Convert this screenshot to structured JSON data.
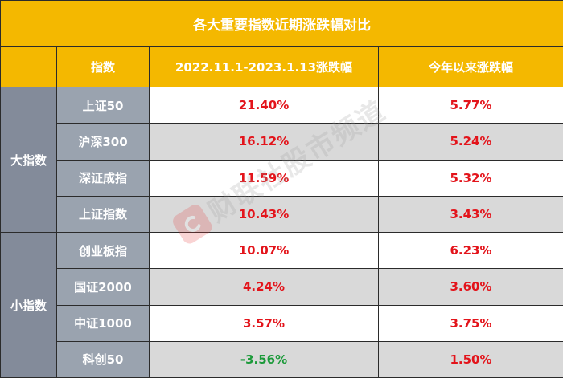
{
  "title": "各大重要指数近期涨跌幅对比",
  "headers": {
    "index": "指数",
    "period": "2022.11.1-2023.1.13涨跌幅",
    "ytd": "今年以来涨跌幅"
  },
  "groups": [
    {
      "label": "大指数",
      "rows": [
        {
          "name": "上证50",
          "period": "21.40%",
          "ytd": "5.77%"
        },
        {
          "name": "沪深300",
          "period": "16.12%",
          "ytd": "5.24%"
        },
        {
          "name": "深证成指",
          "period": "11.59%",
          "ytd": "5.32%"
        },
        {
          "name": "上证指数",
          "period": "10.43%",
          "ytd": "3.43%"
        }
      ]
    },
    {
      "label": "小指数",
      "rows": [
        {
          "name": "创业板指",
          "period": "10.07%",
          "ytd": "6.23%"
        },
        {
          "name": "国证2000",
          "period": "4.24%",
          "ytd": "3.60%"
        },
        {
          "name": "中证1000",
          "period": "3.57%",
          "ytd": "3.75%"
        },
        {
          "name": "科创50",
          "period": "-3.56%",
          "ytd": "1.50%"
        }
      ]
    }
  ],
  "watermark": "财联社股市频道",
  "colors": {
    "header": "#f4b800",
    "positive": "#e3141b",
    "negative": "#1c9a3a"
  }
}
